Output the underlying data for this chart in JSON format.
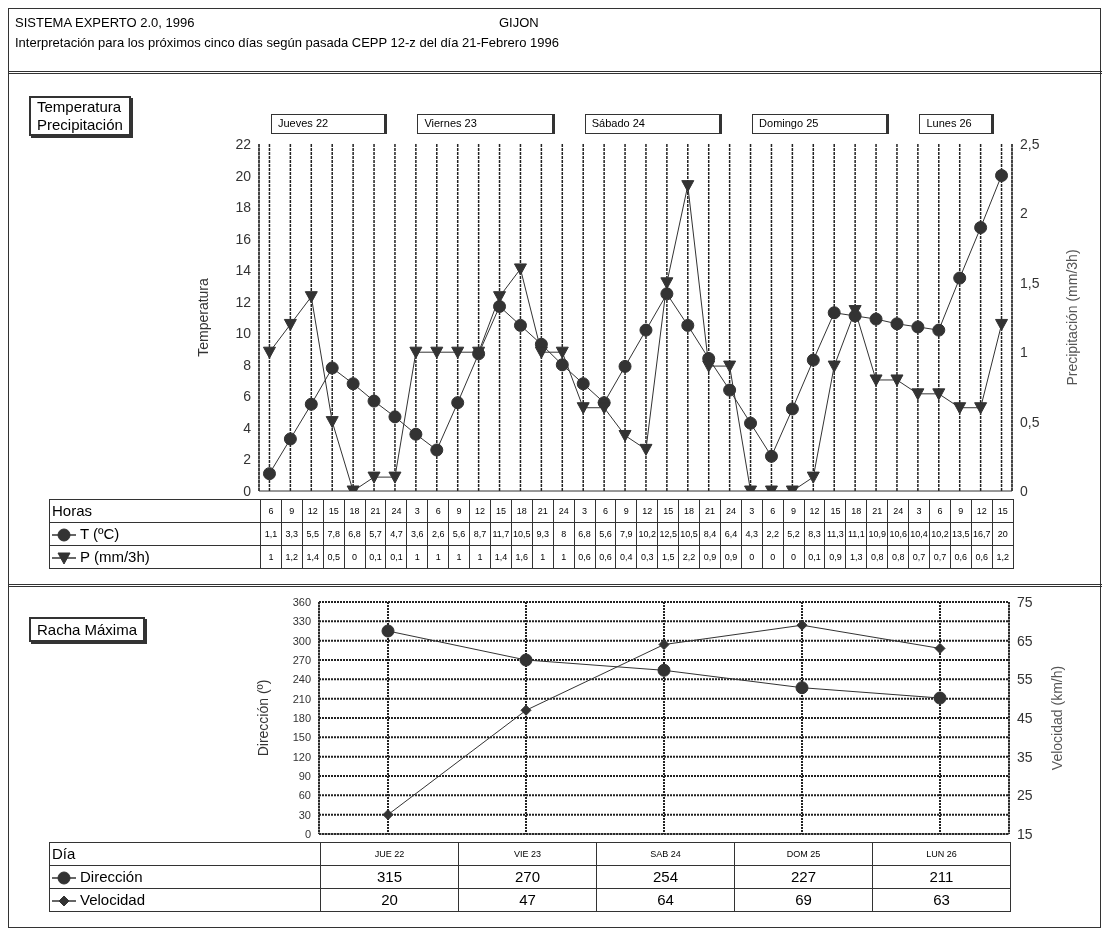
{
  "chart_data": [
    {
      "type": "line",
      "title": "SISTEMA EXPERTO 2.0, 1996",
      "subtitle": "Interpretación para los próximos cinco días según pasada CEPP 12-z del día 21-Febrero 1996",
      "annotations": [
        "GIJON",
        "Temperatura",
        "Precipitación",
        "Jueves 22",
        "Viernes 23",
        "Sábado 24",
        "Domingo 25",
        "Lunes 26",
        "Horas"
      ],
      "ylabel": "Temperatura",
      "y2label": "Precipitación (mm/3h)",
      "categories": [
        "6",
        "9",
        "12",
        "15",
        "18",
        "21",
        "24",
        "3",
        "6",
        "9",
        "12",
        "15",
        "18",
        "21",
        "24",
        "3",
        "6",
        "9",
        "12",
        "15",
        "18",
        "21",
        "24",
        "3",
        "6",
        "9",
        "12",
        "15",
        "18",
        "21",
        "24",
        "3",
        "6",
        "9",
        "12",
        "15"
      ],
      "series": [
        {
          "name": "T (ºC)",
          "color": "#333333",
          "marker": "circle",
          "axis": "y",
          "values": [
            1.1,
            3.3,
            5.5,
            7.8,
            6.8,
            5.7,
            4.7,
            3.6,
            2.6,
            5.6,
            8.7,
            11.7,
            10.5,
            9.3,
            8,
            6.8,
            5.6,
            7.9,
            10.2,
            12.5,
            10.5,
            8.4,
            6.4,
            4.3,
            2.2,
            5.2,
            8.3,
            11.3,
            11.1,
            10.9,
            10.6,
            10.4,
            10.2,
            13.5,
            16.7,
            20
          ],
          "value_labels": [
            "1,1",
            "3,3",
            "5,5",
            "7,8",
            "6,8",
            "5,7",
            "4,7",
            "3,6",
            "2,6",
            "5,6",
            "8,7",
            "11,7",
            "10,5",
            "9,3",
            "8",
            "6,8",
            "5,6",
            "7,9",
            "10,2",
            "12,5",
            "10,5",
            "8,4",
            "6,4",
            "4,3",
            "2,2",
            "5,2",
            "8,3",
            "11,3",
            "11,1",
            "10,9",
            "10,6",
            "10,4",
            "10,2",
            "13,5",
            "16,7",
            "20"
          ]
        },
        {
          "name": "P (mm/3h)",
          "color": "#333333",
          "marker": "triangle",
          "axis": "y2",
          "values": [
            1,
            1.2,
            1.4,
            0.5,
            0,
            0.1,
            0.1,
            1,
            1,
            1,
            1,
            1.4,
            1.6,
            1,
            1,
            0.6,
            0.6,
            0.4,
            0.3,
            1.5,
            2.2,
            0.9,
            0.9,
            0,
            0,
            0,
            0.1,
            0.9,
            1.3,
            0.8,
            0.8,
            0.7,
            0.7,
            0.6,
            0.6,
            1.2
          ],
          "value_labels": [
            "1",
            "1,2",
            "1,4",
            "0,5",
            "0",
            "0,1",
            "0,1",
            "1",
            "1",
            "1",
            "1",
            "1,4",
            "1,6",
            "1",
            "1",
            "0,6",
            "0,6",
            "0,4",
            "0,3",
            "1,5",
            "2,2",
            "0,9",
            "0,9",
            "0",
            "0",
            "0",
            "0,1",
            "0,9",
            "1,3",
            "0,8",
            "0,8",
            "0,7",
            "0,7",
            "0,6",
            "0,6",
            "1,2"
          ]
        }
      ],
      "ylim": [
        0,
        22
      ],
      "yticks": [
        0,
        2,
        4,
        6,
        8,
        10,
        12,
        14,
        16,
        18,
        20,
        22
      ],
      "y2lim": [
        0,
        2.5
      ],
      "y2ticks": [
        0,
        {
          "value": 0.5,
          "label": "0,5"
        },
        1,
        {
          "value": 1.5,
          "label": "1,5"
        },
        2,
        {
          "value": 2.5,
          "label": "2,5"
        }
      ],
      "grid": "x",
      "legend": "bottom left",
      "data_labels": true
    },
    {
      "type": "line",
      "annotations": [
        "Racha Máxima",
        "Día"
      ],
      "ylabel": "Dirección (º)",
      "y2label": "Velocidad (km/h)",
      "categories": [
        "JUE 22",
        "VIE 23",
        "SAB 24",
        "DOM 25",
        "LUN 26"
      ],
      "series": [
        {
          "name": "Dirección",
          "color": "#333333",
          "marker": "circle",
          "axis": "y",
          "values": [
            315,
            270,
            254,
            227,
            211
          ],
          "value_labels": [
            "315",
            "270",
            "254",
            "227",
            "211"
          ]
        },
        {
          "name": "Velocidad",
          "color": "#333333",
          "marker": "diamond",
          "axis": "y2",
          "values": [
            20,
            47,
            64,
            69,
            63
          ],
          "value_labels": [
            "20",
            "47",
            "64",
            "69",
            "63"
          ]
        }
      ],
      "ylim": [
        0,
        360
      ],
      "yticks": [
        0,
        30,
        60,
        90,
        120,
        150,
        180,
        210,
        240,
        270,
        300,
        330,
        360
      ],
      "y2lim": [
        15,
        75
      ],
      "y2ticks": [
        15,
        25,
        35,
        45,
        55,
        65,
        75
      ],
      "grid": true,
      "legend": "bottom left",
      "data_labels": true
    }
  ]
}
